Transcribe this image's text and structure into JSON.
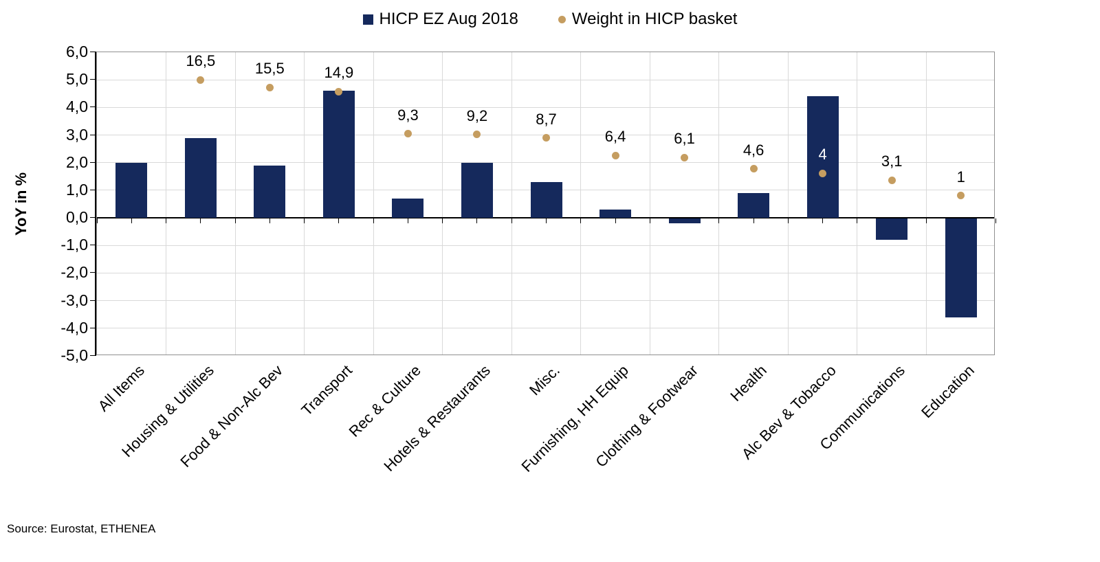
{
  "legend": {
    "series1_label": "HICP EZ Aug 2018",
    "series2_label": "Weight in HICP basket"
  },
  "y_axis": {
    "title": "YoY in %",
    "tick_labels": [
      "6,0",
      "5,0",
      "4,0",
      "3,0",
      "2,0",
      "1,0",
      "0,0",
      "-1,0",
      "-2,0",
      "-3,0",
      "-4,0",
      "-5,0"
    ],
    "max": 6,
    "min": -5,
    "step": 1
  },
  "source": "Source: Eurostat, ETHENEA",
  "colors": {
    "bar": "#15295c",
    "dot": "#c59d60",
    "gridline": "#d9d9d9",
    "border": "#909090",
    "axis": "#000000"
  },
  "chart_data": {
    "type": "bar",
    "title": "",
    "ylabel": "YoY in %",
    "ylim": [
      -5,
      6
    ],
    "grid": true,
    "legend_position": "top-center",
    "categories": [
      "All Items",
      "Housing & Utilities",
      "Food & Non-Alc Bev",
      "Transport",
      "Rec & Culture",
      "Hotels & Restaurants",
      "Misc.",
      "Furnishing, HH Equip",
      "Clothing & Footwear",
      "Health",
      "Alc Bev & Tobacco",
      "Communications",
      "Education"
    ],
    "series": [
      {
        "name": "HICP EZ Aug 2018",
        "type": "bar",
        "color": "#15295c",
        "values": [
          2.0,
          2.9,
          1.9,
          4.6,
          0.7,
          2.0,
          1.3,
          0.3,
          -0.2,
          0.9,
          4.4,
          -0.8,
          -3.6
        ]
      },
      {
        "name": "Weight in HICP basket",
        "type": "scatter",
        "color": "#c59d60",
        "values": [
          null,
          16.5,
          15.5,
          14.9,
          9.3,
          9.2,
          8.7,
          6.4,
          6.1,
          4.6,
          4,
          3.1,
          1
        ],
        "labels": [
          "",
          "16,5",
          "15,5",
          "14,9",
          "9,3",
          "9,2",
          "8,7",
          "6,4",
          "6,1",
          "4,6",
          "4",
          "3,1",
          "1"
        ],
        "plotted_on_left_axis": [
          null,
          5.0,
          4.73,
          4.57,
          3.05,
          3.02,
          2.89,
          2.26,
          2.18,
          1.78,
          1.61,
          1.37,
          0.8
        ],
        "label_colors": [
          null,
          "#000000",
          "#000000",
          "#000000",
          "#000000",
          "#000000",
          "#000000",
          "#000000",
          "#000000",
          "#000000",
          "#ffffff",
          "#000000",
          "#000000"
        ]
      }
    ]
  }
}
